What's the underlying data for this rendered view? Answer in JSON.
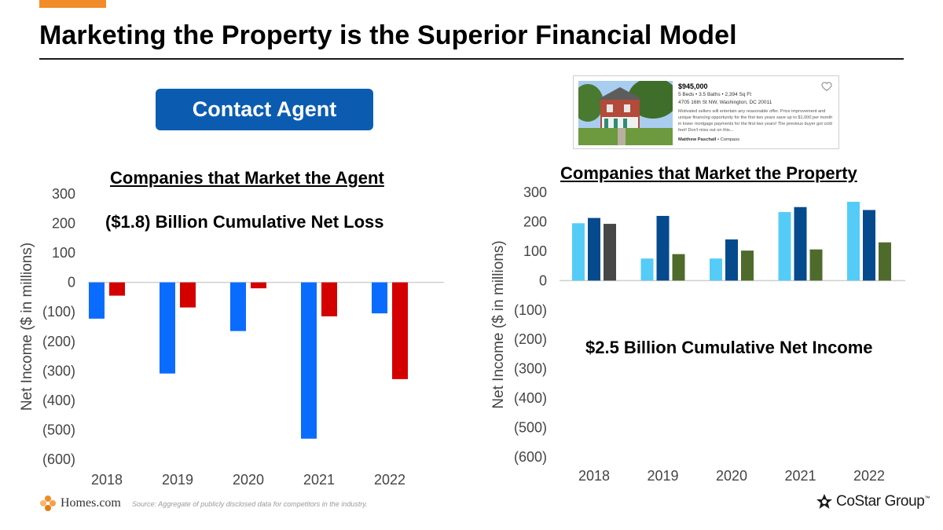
{
  "page": {
    "title": "Marketing the Property is the Superior Financial Model",
    "contact_button": "Contact Agent",
    "source": "Source: Aggregate of publicly disclosed data for competitors in the industry.",
    "brand_left": "Homes.com",
    "brand_right": "CoStar Group",
    "brand_right_tm": "™"
  },
  "listing": {
    "price": "$945,000",
    "specs": "5 Beds  •  3.5 Baths  •  2,394 Sq Ft",
    "address": "4705 16th St NW, Washington, DC 20011",
    "description": "Motivated sellers will entertain any reasonable offer. Price improvement and unique financing opportunity for the first two years save up to $1,000 per month in lower mortgage payments for the first two years! The previous buyer got cold feet! Don't miss out on this...",
    "agent_name": "Matthew Paschall",
    "agent_brokerage": "Compass"
  },
  "colors": {
    "accent": "#f28c28",
    "button": "#0b5cb0",
    "agent_series_1": "#0a6cff",
    "agent_series_2": "#d40000",
    "property_series_1": "#55ccf7",
    "property_series_2": "#064a8e",
    "property_series_3_2018": "#474747",
    "property_series_3": "#4f6b2c"
  },
  "chart_data": [
    {
      "type": "bar",
      "title": "Companies that Market the Agent",
      "annotation": "($1.8) Billion Cumulative Net Loss",
      "ylabel": "Net Income ($ in millions)",
      "ylim": [
        -600,
        300
      ],
      "yticks": [
        300,
        200,
        100,
        0,
        -100,
        -200,
        -300,
        -400,
        -500,
        -600
      ],
      "ytick_labels": [
        "300",
        "200",
        "100",
        "0",
        "(100)",
        "(200)",
        "(300)",
        "(400)",
        "(500)",
        "(600)"
      ],
      "categories": [
        "2018",
        "2019",
        "2020",
        "2021",
        "2022"
      ],
      "grid": false,
      "series": [
        {
          "values": [
            -123,
            -309,
            -165,
            -530,
            -105
          ]
        },
        {
          "values": [
            -45,
            -85,
            -20,
            -115,
            -328
          ]
        }
      ]
    },
    {
      "type": "bar",
      "title": "Companies that Market the Property",
      "annotation": "$2.5 Billion Cumulative Net Income",
      "ylabel": "Net Income ($ in millions)",
      "ylim": [
        -600,
        300
      ],
      "yticks": [
        300,
        200,
        100,
        0,
        -100,
        -200,
        -300,
        -400,
        -500,
        -600
      ],
      "ytick_labels": [
        "300",
        "200",
        "100",
        "0",
        "(100)",
        "(200)",
        "(300)",
        "(400)",
        "(500)",
        "(600)"
      ],
      "categories": [
        "2018",
        "2019",
        "2020",
        "2021",
        "2022"
      ],
      "grid": false,
      "series": [
        {
          "values": [
            195,
            75,
            75,
            233,
            268
          ]
        },
        {
          "values": [
            213,
            220,
            140,
            250,
            240
          ]
        },
        {
          "values": [
            193,
            90,
            102,
            106,
            130
          ]
        }
      ]
    }
  ]
}
